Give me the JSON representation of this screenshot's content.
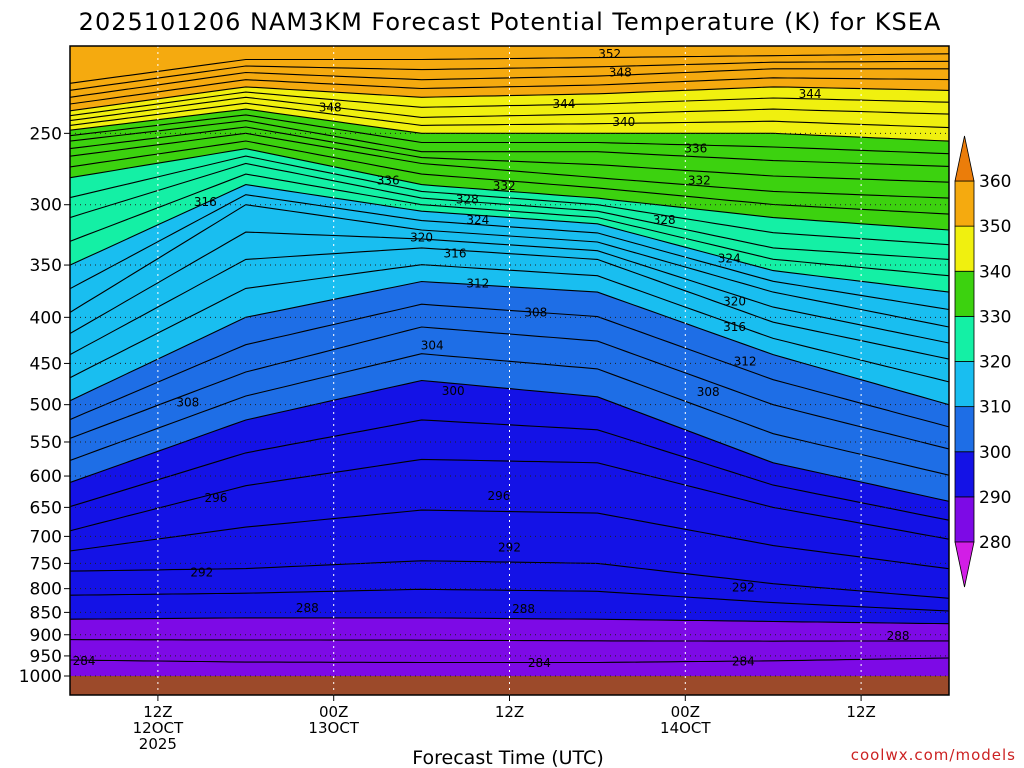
{
  "title": "2025101206 NAM3KM Forecast Potential Temperature (K) for KSEA",
  "credit": "coolwx.com/models",
  "chart_data": {
    "type": "heatmap",
    "title": "2025101206 NAM3KM Forecast Potential Temperature (K) for KSEA",
    "xlabel": "Forecast Time (UTC)",
    "ylabel": "",
    "x_unit_note": "",
    "xlim": [
      -5,
      45
    ],
    "ylim": [
      1000,
      200
    ],
    "y_scale": "log-pressure",
    "y_ticks": [
      250,
      300,
      350,
      400,
      450,
      500,
      550,
      600,
      650,
      700,
      750,
      800,
      850,
      900,
      950,
      1000
    ],
    "x_ticks": [
      {
        "x": 0,
        "lines": [
          "12Z",
          "12OCT",
          "2025"
        ]
      },
      {
        "x": 10,
        "lines": [
          "00Z",
          "13OCT"
        ]
      },
      {
        "x": 20,
        "lines": [
          "12Z"
        ]
      },
      {
        "x": 30,
        "lines": [
          "00Z",
          "14OCT"
        ]
      },
      {
        "x": 40,
        "lines": [
          "12Z"
        ]
      }
    ],
    "grid": true,
    "colorbar": {
      "levels": [
        280,
        290,
        300,
        310,
        320,
        330,
        340,
        350,
        360
      ],
      "colors": [
        "#d21ee6",
        "#7d0ae6",
        "#1412e6",
        "#1e6ee6",
        "#19bef0",
        "#14f0a5",
        "#3cd20f",
        "#f0f00f",
        "#f5aa0f",
        "#eb7d0a"
      ]
    },
    "contour_interval": 2,
    "series": [
      {
        "value": 284,
        "x": [
          -5,
          5,
          15,
          25,
          35,
          45
        ],
        "y": [
          960,
          965,
          966,
          966,
          962,
          955
        ]
      },
      {
        "value": 288,
        "x": [
          -5,
          5,
          15,
          25,
          35,
          45
        ],
        "y": [
          865,
          862,
          862,
          865,
          870,
          875
        ]
      },
      {
        "value": 292,
        "x": [
          -5,
          5,
          15,
          25,
          35,
          45
        ],
        "y": [
          765,
          760,
          745,
          750,
          790,
          820
        ]
      },
      {
        "value": 296,
        "x": [
          -5,
          5,
          15,
          25,
          35,
          45
        ],
        "y": [
          690,
          615,
          575,
          580,
          650,
          705
        ]
      },
      {
        "value": 300,
        "x": [
          -5,
          5,
          15,
          25,
          35,
          45
        ],
        "y": [
          610,
          520,
          470,
          490,
          580,
          640
        ]
      },
      {
        "value": 304,
        "x": [
          -5,
          5,
          15,
          25,
          35,
          45
        ],
        "y": [
          545,
          460,
          410,
          425,
          500,
          560
        ]
      },
      {
        "value": 308,
        "x": [
          -5,
          5,
          15,
          25,
          35,
          45
        ],
        "y": [
          495,
          400,
          365,
          375,
          440,
          500
        ]
      },
      {
        "value": 312,
        "x": [
          -5,
          5,
          15,
          25,
          35,
          45
        ],
        "y": [
          440,
          345,
          335,
          345,
          405,
          445
        ]
      },
      {
        "value": 316,
        "x": [
          -5,
          5,
          15,
          25,
          35,
          45
        ],
        "y": [
          395,
          300,
          320,
          330,
          375,
          410
        ]
      },
      {
        "value": 320,
        "x": [
          -5,
          5,
          15,
          25,
          35,
          45
        ],
        "y": [
          350,
          285,
          305,
          315,
          355,
          375
        ]
      },
      {
        "value": 324,
        "x": [
          -5,
          5,
          15,
          25,
          35,
          45
        ],
        "y": [
          310,
          270,
          295,
          305,
          335,
          345
        ]
      },
      {
        "value": 328,
        "x": [
          -5,
          5,
          15,
          25,
          35,
          45
        ],
        "y": [
          280,
          260,
          285,
          295,
          310,
          320
        ]
      },
      {
        "value": 332,
        "x": [
          -5,
          5,
          15,
          25,
          35,
          45
        ],
        "y": [
          265,
          250,
          270,
          280,
          290,
          295
        ]
      },
      {
        "value": 336,
        "x": [
          -5,
          5,
          15,
          25,
          35,
          45
        ],
        "y": [
          255,
          242,
          262,
          262,
          268,
          272
        ]
      },
      {
        "value": 340,
        "x": [
          -5,
          5,
          15,
          25,
          35,
          45
        ],
        "y": [
          248,
          235,
          250,
          250,
          250,
          255
        ]
      },
      {
        "value": 344,
        "x": [
          -5,
          5,
          15,
          25,
          35,
          45
        ],
        "y": [
          242,
          228,
          240,
          238,
          235,
          238
        ]
      },
      {
        "value": 348,
        "x": [
          -5,
          5,
          15,
          25,
          35,
          45
        ],
        "y": [
          236,
          222,
          228,
          226,
          222,
          224
        ]
      },
      {
        "value": 352,
        "x": [
          -5,
          5,
          15,
          25,
          35,
          45
        ],
        "y": [
          228,
          214,
          218,
          216,
          212,
          212
        ]
      },
      {
        "value": 356,
        "x": [
          -5,
          5,
          15,
          25,
          35,
          45
        ],
        "y": [
          220,
          207,
          207,
          206,
          205,
          204
        ]
      }
    ],
    "contour_labels": [
      {
        "text": "352",
        "x": 25.7,
        "y": 204
      },
      {
        "text": "348",
        "x": 26.3,
        "y": 214
      },
      {
        "text": "344",
        "x": 37.1,
        "y": 226
      },
      {
        "text": "348",
        "x": 9.8,
        "y": 234
      },
      {
        "text": "344",
        "x": 23.1,
        "y": 232
      },
      {
        "text": "340",
        "x": 26.5,
        "y": 243
      },
      {
        "text": "336",
        "x": 30.6,
        "y": 260
      },
      {
        "text": "332",
        "x": 30.8,
        "y": 282
      },
      {
        "text": "336",
        "x": 13.1,
        "y": 282
      },
      {
        "text": "332",
        "x": 19.7,
        "y": 286
      },
      {
        "text": "328",
        "x": 17.6,
        "y": 296
      },
      {
        "text": "316",
        "x": 2.7,
        "y": 298
      },
      {
        "text": "324",
        "x": 18.2,
        "y": 312
      },
      {
        "text": "328",
        "x": 28.8,
        "y": 312
      },
      {
        "text": "320",
        "x": 15.0,
        "y": 326
      },
      {
        "text": "316",
        "x": 16.9,
        "y": 340
      },
      {
        "text": "324",
        "x": 32.5,
        "y": 344
      },
      {
        "text": "312",
        "x": 18.2,
        "y": 367
      },
      {
        "text": "320",
        "x": 32.8,
        "y": 384
      },
      {
        "text": "308",
        "x": 21.5,
        "y": 395
      },
      {
        "text": "316",
        "x": 32.8,
        "y": 410
      },
      {
        "text": "304",
        "x": 15.6,
        "y": 430
      },
      {
        "text": "312",
        "x": 33.4,
        "y": 448
      },
      {
        "text": "300",
        "x": 16.8,
        "y": 483
      },
      {
        "text": "308",
        "x": 31.3,
        "y": 484
      },
      {
        "text": "308",
        "x": 1.7,
        "y": 497
      },
      {
        "text": "296",
        "x": 19.4,
        "y": 631
      },
      {
        "text": "296",
        "x": 3.3,
        "y": 635
      },
      {
        "text": "292",
        "x": 20.0,
        "y": 720
      },
      {
        "text": "292",
        "x": 2.5,
        "y": 768
      },
      {
        "text": "292",
        "x": 33.3,
        "y": 798
      },
      {
        "text": "288",
        "x": 8.5,
        "y": 840
      },
      {
        "text": "288",
        "x": 20.8,
        "y": 843
      },
      {
        "text": "288",
        "x": 42.1,
        "y": 903
      },
      {
        "text": "284",
        "x": -4.2,
        "y": 962
      },
      {
        "text": "284",
        "x": 21.7,
        "y": 967
      },
      {
        "text": "284",
        "x": 33.3,
        "y": 964
      }
    ]
  }
}
